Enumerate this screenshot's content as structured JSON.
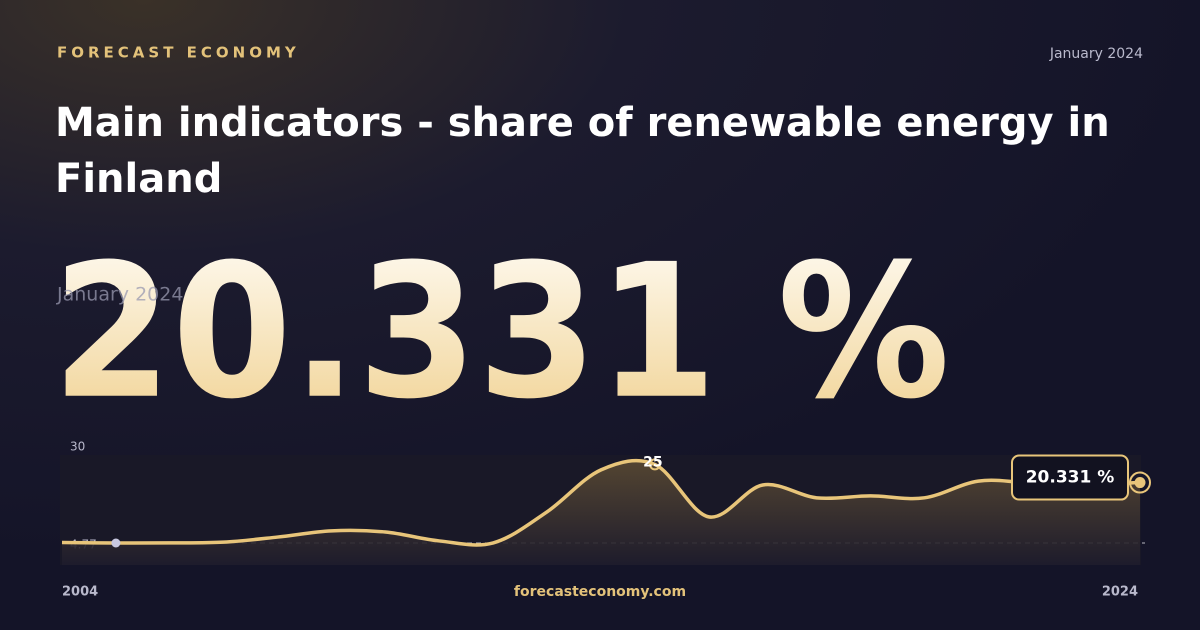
{
  "brand": "FORECAST ECONOMY",
  "date": "January 2024",
  "title": "Main indicators - share of renewable energy in Finland",
  "headline_date": "January 2024",
  "headline_value": "20.331 %",
  "footer": "forecasteconomy.com",
  "chart_data": {
    "type": "line",
    "x": [
      2004,
      2005,
      2006,
      2007,
      2008,
      2009,
      2010,
      2011,
      2012,
      2013,
      2014,
      2015,
      2016,
      2017,
      2018,
      2019,
      2020,
      2021,
      2022,
      2023,
      2024
    ],
    "series": [
      {
        "color": "#e8c57a",
        "values": [
          4.9,
          4.77,
          4.8,
          5.0,
          6.3,
          7.9,
          7.6,
          5.3,
          4.8,
          12.8,
          23.6,
          25,
          11.5,
          19.7,
          16.4,
          16.9,
          16.4,
          20.7,
          20.2,
          19.8,
          20.331
        ]
      }
    ],
    "xlim": [
      2004,
      2024
    ],
    "xticks": [
      2004,
      2024
    ],
    "ylim": [
      4.77,
      30
    ],
    "yticks": [
      4.77,
      30
    ]
  }
}
